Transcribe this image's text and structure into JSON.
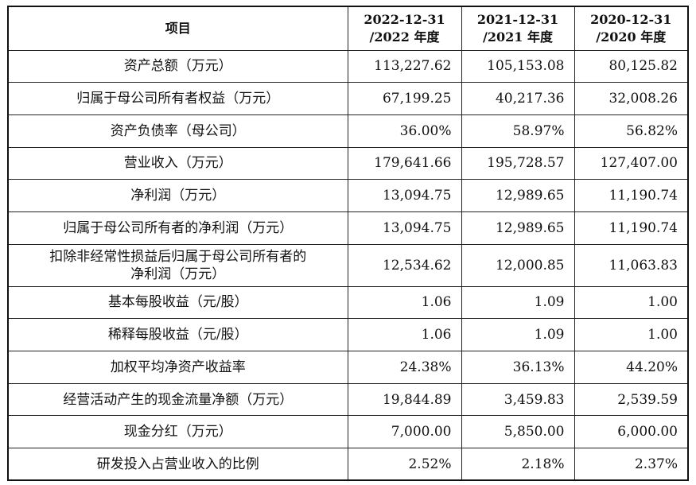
{
  "table": {
    "headers": [
      "项目",
      "2022-12-31\n/2022 年度",
      "2021-12-31\n/2021 年度",
      "2020-12-31\n/2020 年度"
    ],
    "header_lines": [
      [
        "项目"
      ],
      [
        "2022-12-31",
        "/2022 年度"
      ],
      [
        "2021-12-31",
        "/2021 年度"
      ],
      [
        "2020-12-31",
        "/2020 年度"
      ]
    ],
    "rows": [
      {
        "label": "资产总额（万元）",
        "v2022": "113,227.62",
        "v2021": "105,153.08",
        "v2020": "80,125.82"
      },
      {
        "label": "归属于母公司所有者权益（万元）",
        "v2022": "67,199.25",
        "v2021": "40,217.36",
        "v2020": "32,008.26"
      },
      {
        "label": "资产负债率（母公司）",
        "v2022": "36.00%",
        "v2021": "58.97%",
        "v2020": "56.82%"
      },
      {
        "label": "营业收入（万元）",
        "v2022": "179,641.66",
        "v2021": "195,728.57",
        "v2020": "127,407.00"
      },
      {
        "label": "净利润（万元）",
        "v2022": "13,094.75",
        "v2021": "12,989.65",
        "v2020": "11,190.74"
      },
      {
        "label": "归属于母公司所有者的净利润（万元）",
        "v2022": "13,094.75",
        "v2021": "12,989.65",
        "v2020": "11,190.74"
      },
      {
        "label_lines": [
          "扣除非经常性损益后归属于母公司所有者的",
          "净利润（万元）"
        ],
        "v2022": "12,534.62",
        "v2021": "12,000.85",
        "v2020": "11,063.83"
      },
      {
        "label": "基本每股收益（元/股）",
        "v2022": "1.06",
        "v2021": "1.09",
        "v2020": "1.00"
      },
      {
        "label": "稀释每股收益（元/股）",
        "v2022": "1.06",
        "v2021": "1.09",
        "v2020": "1.00"
      },
      {
        "label": "加权平均净资产收益率",
        "v2022": "24.38%",
        "v2021": "36.13%",
        "v2020": "44.20%"
      },
      {
        "label": "经营活动产生的现金流量净额（万元）",
        "v2022": "19,844.89",
        "v2021": "3,459.83",
        "v2020": "2,539.59"
      },
      {
        "label": "现金分红（万元）",
        "v2022": "7,000.00",
        "v2021": "5,850.00",
        "v2020": "6,000.00"
      },
      {
        "label": "研发投入占营业收入的比例",
        "v2022": "2.52%",
        "v2021": "2.18%",
        "v2020": "2.37%"
      }
    ]
  }
}
